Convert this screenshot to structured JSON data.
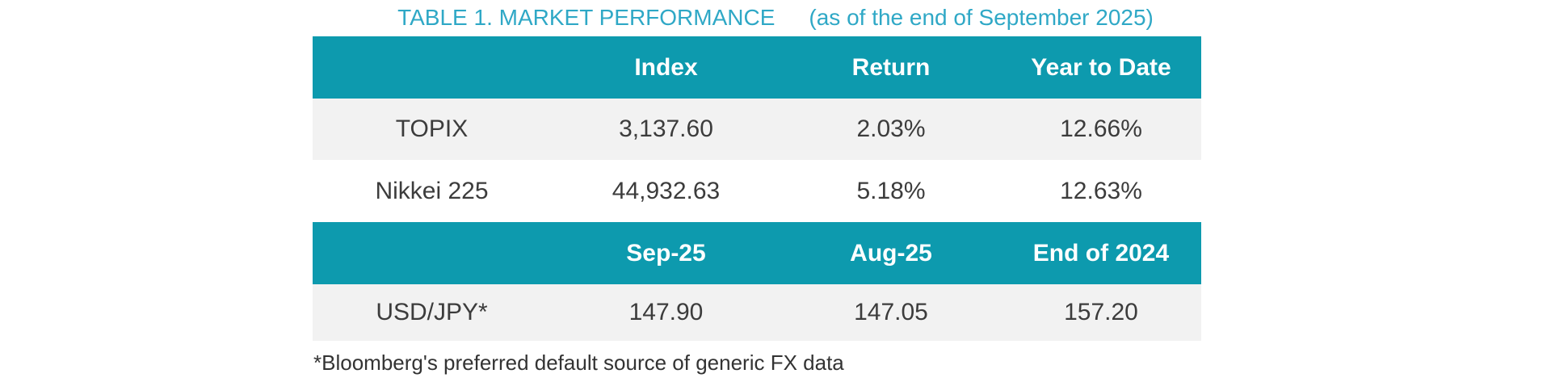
{
  "title": {
    "main": "TABLE 1. MARKET PERFORMANCE",
    "suffix": "(as of the end of September 2025)"
  },
  "colors": {
    "header_teal": "#0d9aae",
    "title_teal": "#2fa8c6",
    "stripe_gray": "#f2f2f2",
    "header_text": "#ffffff",
    "body_text": "#3c3c3c"
  },
  "index_section": {
    "headers": [
      "",
      "Index",
      "Return",
      "Year to Date"
    ],
    "rows": [
      {
        "label": "TOPIX",
        "values": [
          "3,137.60",
          "2.03%",
          "12.66%"
        ]
      },
      {
        "label": "Nikkei 225",
        "values": [
          "44,932.63",
          "5.18%",
          "12.63%"
        ]
      }
    ]
  },
  "fx_section": {
    "headers": [
      "",
      "Sep-25",
      "Aug-25",
      "End of 2024"
    ],
    "rows": [
      {
        "label": "USD/JPY*",
        "values": [
          "147.90",
          "147.05",
          "157.20"
        ]
      }
    ]
  },
  "footnote": "*Bloomberg's preferred default source of generic FX data"
}
